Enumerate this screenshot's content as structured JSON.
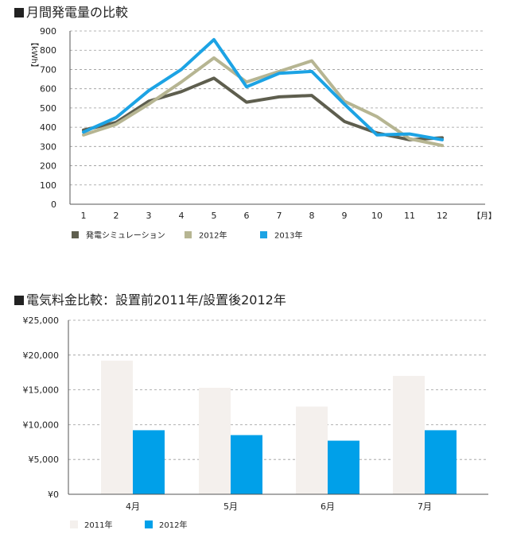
{
  "chart_data": [
    {
      "type": "line",
      "title": "月間発電量の比較",
      "ylabel": "【kWh】",
      "xlabel": "【月】",
      "ylim": [
        0,
        900
      ],
      "yticks": [
        "0",
        "100",
        "200",
        "300",
        "400",
        "500",
        "600",
        "700",
        "800",
        "900"
      ],
      "categories": [
        "1",
        "2",
        "3",
        "4",
        "5",
        "6",
        "7",
        "8",
        "9",
        "10",
        "11",
        "12"
      ],
      "grid": true,
      "legend_position": "bottom-left",
      "series": [
        {
          "name": "発電シミュレーション",
          "color": "#5e5e4e",
          "values": [
            385,
            425,
            535,
            585,
            655,
            530,
            558,
            565,
            430,
            370,
            335,
            345
          ]
        },
        {
          "name": "2012年",
          "color": "#b6b592",
          "values": [
            360,
            415,
            520,
            635,
            760,
            635,
            690,
            745,
            535,
            455,
            340,
            305
          ]
        },
        {
          "name": "2013年",
          "color": "#1ca3e4",
          "values": [
            375,
            450,
            590,
            700,
            855,
            610,
            680,
            690,
            520,
            360,
            365,
            335
          ]
        }
      ]
    },
    {
      "type": "bar",
      "title": "電気料金比較：設置前2011年/設置後2012年",
      "ylim": [
        0,
        25000
      ],
      "yticks": [
        "¥0",
        "¥5,000",
        "¥10,000",
        "¥15,000",
        "¥20,000",
        "¥25,000"
      ],
      "categories": [
        "4月",
        "5月",
        "6月",
        "7月"
      ],
      "grid": true,
      "legend_position": "bottom-left",
      "series": [
        {
          "name": "2011年",
          "color": "#f4f0ed",
          "values": [
            19200,
            15300,
            12600,
            17000
          ]
        },
        {
          "name": "2012年",
          "color": "#00a0e9",
          "values": [
            9200,
            8500,
            7700,
            9200
          ]
        }
      ]
    }
  ]
}
